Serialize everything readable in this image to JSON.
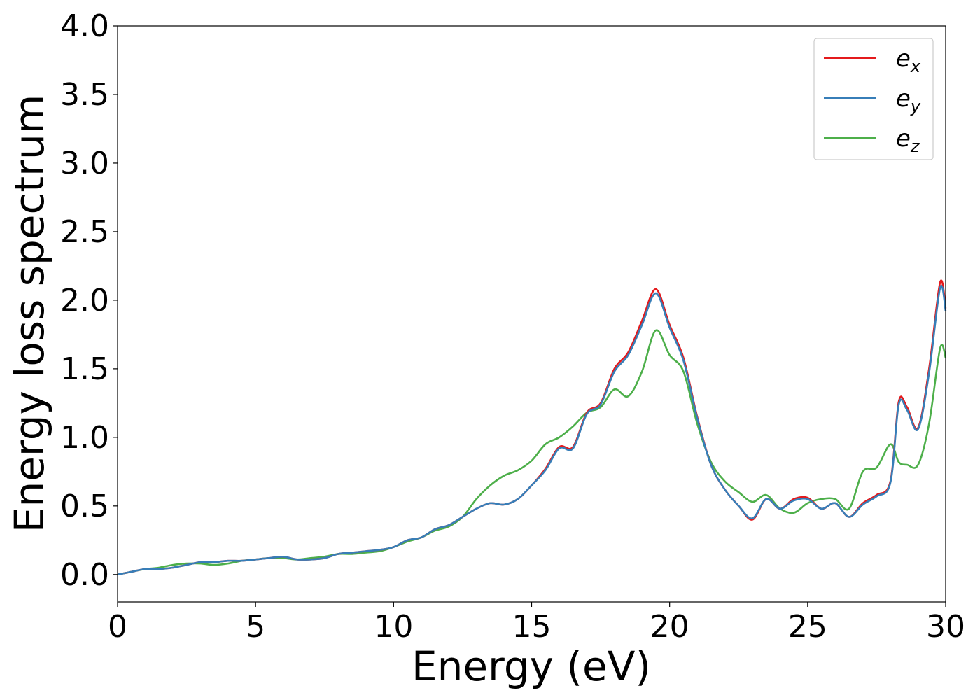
{
  "chart_data": {
    "type": "line",
    "xlabel": "Energy (eV)",
    "ylabel": "Energy loss spectrum",
    "xlim": [
      0,
      30
    ],
    "ylim": [
      -0.2,
      4.0
    ],
    "xticks": [
      0,
      5,
      10,
      15,
      20,
      25,
      30
    ],
    "xtick_labels": [
      "0",
      "5",
      "10",
      "15",
      "20",
      "25",
      "30"
    ],
    "yticks": [
      0.0,
      0.5,
      1.0,
      1.5,
      2.0,
      2.5,
      3.0,
      3.5,
      4.0
    ],
    "ytick_labels": [
      "0.0",
      "0.5",
      "1.0",
      "1.5",
      "2.0",
      "2.5",
      "3.0",
      "3.5",
      "4.0"
    ],
    "grid": false,
    "legend_position": "top-right",
    "series": [
      {
        "name": "e_x",
        "legend_base": "e",
        "legend_sub": "x",
        "color": "#e41a1c",
        "x": [
          0,
          0.5,
          1,
          1.5,
          2,
          2.5,
          3,
          3.5,
          4,
          4.5,
          5,
          5.5,
          6,
          6.5,
          7,
          7.5,
          8,
          8.5,
          9,
          9.5,
          10,
          10.5,
          11,
          11.5,
          12,
          12.5,
          13,
          13.5,
          14,
          14.5,
          15,
          15.5,
          16,
          16.5,
          17,
          17.5,
          18,
          18.5,
          19,
          19.5,
          20,
          20.5,
          21,
          21.5,
          22,
          22.5,
          23,
          23.5,
          24,
          24.5,
          25,
          25.5,
          26,
          26.5,
          27,
          27.5,
          28,
          28.3,
          28.6,
          29,
          29.4,
          29.8,
          30
        ],
        "y": [
          0.0,
          0.02,
          0.04,
          0.04,
          0.05,
          0.07,
          0.09,
          0.09,
          0.1,
          0.1,
          0.11,
          0.12,
          0.13,
          0.11,
          0.11,
          0.12,
          0.15,
          0.16,
          0.17,
          0.18,
          0.2,
          0.25,
          0.27,
          0.33,
          0.36,
          0.42,
          0.48,
          0.52,
          0.51,
          0.55,
          0.65,
          0.77,
          0.93,
          0.93,
          1.18,
          1.25,
          1.5,
          1.62,
          1.85,
          2.08,
          1.82,
          1.58,
          1.15,
          0.8,
          0.62,
          0.5,
          0.4,
          0.55,
          0.48,
          0.55,
          0.56,
          0.48,
          0.52,
          0.42,
          0.52,
          0.58,
          0.68,
          1.26,
          1.22,
          1.07,
          1.5,
          2.13,
          1.94
        ]
      },
      {
        "name": "e_y",
        "legend_base": "e",
        "legend_sub": "y",
        "color": "#377eb8",
        "x": [
          0,
          0.5,
          1,
          1.5,
          2,
          2.5,
          3,
          3.5,
          4,
          4.5,
          5,
          5.5,
          6,
          6.5,
          7,
          7.5,
          8,
          8.5,
          9,
          9.5,
          10,
          10.5,
          11,
          11.5,
          12,
          12.5,
          13,
          13.5,
          14,
          14.5,
          15,
          15.5,
          16,
          16.5,
          17,
          17.5,
          18,
          18.5,
          19,
          19.5,
          20,
          20.5,
          21,
          21.5,
          22,
          22.5,
          23,
          23.5,
          24,
          24.5,
          25,
          25.5,
          26,
          26.5,
          27,
          27.5,
          28,
          28.3,
          28.6,
          29,
          29.4,
          29.8,
          30
        ],
        "y": [
          0.0,
          0.02,
          0.04,
          0.04,
          0.05,
          0.07,
          0.09,
          0.09,
          0.1,
          0.1,
          0.11,
          0.12,
          0.13,
          0.11,
          0.11,
          0.12,
          0.15,
          0.16,
          0.17,
          0.18,
          0.2,
          0.25,
          0.27,
          0.33,
          0.36,
          0.42,
          0.48,
          0.52,
          0.51,
          0.55,
          0.65,
          0.76,
          0.92,
          0.92,
          1.17,
          1.24,
          1.48,
          1.6,
          1.82,
          2.05,
          1.8,
          1.56,
          1.14,
          0.8,
          0.62,
          0.5,
          0.41,
          0.55,
          0.48,
          0.54,
          0.55,
          0.48,
          0.52,
          0.42,
          0.51,
          0.57,
          0.67,
          1.24,
          1.2,
          1.06,
          1.47,
          2.09,
          1.92
        ]
      },
      {
        "name": "e_z",
        "legend_base": "e",
        "legend_sub": "z",
        "color": "#4daf4a",
        "x": [
          0,
          0.5,
          1,
          1.5,
          2,
          2.5,
          3,
          3.5,
          4,
          4.5,
          5,
          5.5,
          6,
          6.5,
          7,
          7.5,
          8,
          8.5,
          9,
          9.5,
          10,
          10.5,
          11,
          11.5,
          12,
          12.5,
          13,
          13.5,
          14,
          14.5,
          15,
          15.5,
          16,
          16.5,
          17,
          17.5,
          18,
          18.5,
          19,
          19.5,
          20,
          20.5,
          21,
          21.5,
          22,
          22.5,
          23,
          23.5,
          24,
          24.5,
          25,
          25.5,
          26,
          26.5,
          27,
          27.5,
          28,
          28.3,
          28.6,
          29,
          29.4,
          29.8,
          30
        ],
        "y": [
          0.0,
          0.02,
          0.04,
          0.05,
          0.07,
          0.08,
          0.08,
          0.07,
          0.08,
          0.1,
          0.11,
          0.12,
          0.12,
          0.11,
          0.12,
          0.13,
          0.15,
          0.15,
          0.16,
          0.17,
          0.2,
          0.24,
          0.27,
          0.32,
          0.35,
          0.42,
          0.55,
          0.65,
          0.72,
          0.76,
          0.83,
          0.95,
          1.0,
          1.08,
          1.18,
          1.22,
          1.35,
          1.3,
          1.48,
          1.78,
          1.6,
          1.48,
          1.1,
          0.82,
          0.68,
          0.6,
          0.53,
          0.58,
          0.48,
          0.45,
          0.52,
          0.55,
          0.55,
          0.48,
          0.75,
          0.78,
          0.95,
          0.82,
          0.8,
          0.8,
          1.1,
          1.65,
          1.58
        ]
      }
    ]
  }
}
